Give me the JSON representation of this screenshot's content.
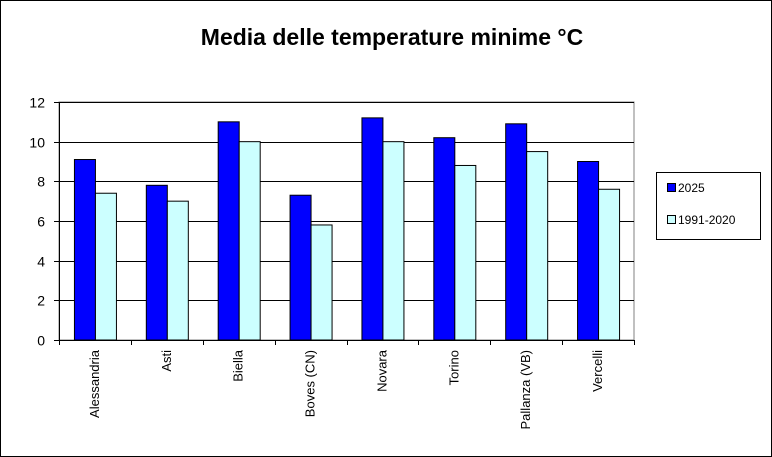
{
  "chart_data": {
    "type": "bar",
    "title": "Media delle temperature minime  °C",
    "categories": [
      "Alessandria",
      "Asti",
      "Biella",
      "Boves (CN)",
      "Novara",
      "Torino",
      "Pallanza (VB)",
      "Vercelli"
    ],
    "series": [
      {
        "name": "2025",
        "color": "#0000ff",
        "values": [
          9.1,
          7.8,
          11.0,
          7.3,
          11.2,
          10.2,
          10.9,
          9.0
        ]
      },
      {
        "name": "1991-2020",
        "color": "#ccffff",
        "values": [
          7.4,
          7.0,
          10.0,
          5.8,
          10.0,
          8.8,
          9.5,
          7.6
        ]
      }
    ],
    "ylim": [
      0,
      12
    ],
    "yticks": [
      "0",
      "2",
      "4",
      "6",
      "8",
      "10",
      "12"
    ],
    "ytick_values": [
      0,
      2,
      4,
      6,
      8,
      10,
      12
    ],
    "grid": true,
    "legend_position": "right",
    "plot_background": "#ffffff",
    "gridline_color": "#000000"
  }
}
